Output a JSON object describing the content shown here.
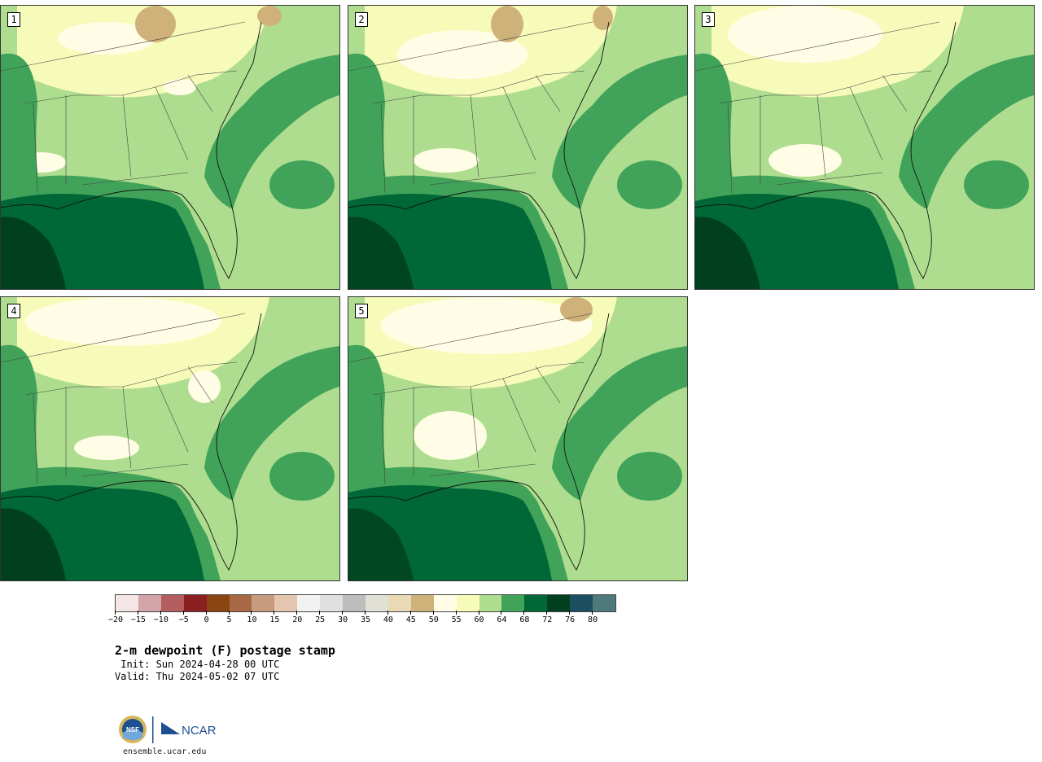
{
  "panels": [
    {
      "label": "1"
    },
    {
      "label": "2"
    },
    {
      "label": "3"
    },
    {
      "label": "4"
    },
    {
      "label": "5"
    }
  ],
  "colorbar": {
    "colors": [
      "#f5e6e6",
      "#d3a4a8",
      "#b45e60",
      "#8c1f1f",
      "#8b4513",
      "#a76a45",
      "#c99b7e",
      "#e5c6b1",
      "#f2f2f2",
      "#e0e0e0",
      "#bdbdbd",
      "#e0e0d4",
      "#e9d9b4",
      "#cfb27a",
      "#fffde5",
      "#f7fbb9",
      "#aedd8f",
      "#41a35a",
      "#006736",
      "#00401e",
      "#1b4e5e",
      "#4e7a7c"
    ],
    "tick_labels": [
      "−20",
      "−15",
      "−10",
      "−5",
      "0",
      "5",
      "10",
      "15",
      "20",
      "25",
      "30",
      "35",
      "40",
      "45",
      "50",
      "55",
      "60",
      "64",
      "68",
      "72",
      "76",
      "80"
    ]
  },
  "title": "2-m dewpoint (F) postage stamp",
  "init_text": " Init: Sun 2024-04-28 00 UTC",
  "valid_text": "Valid: Thu 2024-05-02 07 UTC",
  "logo": {
    "nsf_text": "NSF",
    "ncar_text": "NCAR"
  },
  "site_text": "ensemble.ucar.edu",
  "fill_colors": {
    "ocean_gulf": "#00401e",
    "deep_green": "#006736",
    "mid_green": "#41a35a",
    "light_green": "#aedd8f",
    "pale_yellow": "#f7fbb9",
    "cream": "#fffde5",
    "tan": "#cfb27a"
  }
}
